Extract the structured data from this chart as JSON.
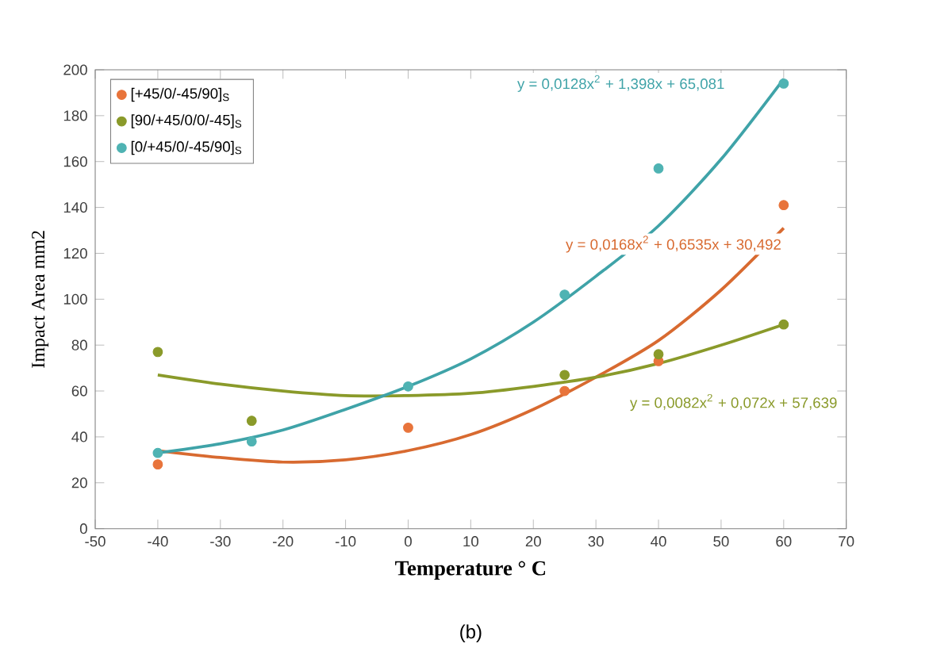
{
  "chart_data": {
    "type": "scatter",
    "xlabel": "Temperature ° C",
    "ylabel": "Impact Area mm2",
    "xlim": [
      -50,
      70
    ],
    "xticks": [
      -50,
      -40,
      -30,
      -20,
      -10,
      0,
      10,
      20,
      30,
      40,
      50,
      60,
      70
    ],
    "ylim": [
      0,
      200
    ],
    "yticks": [
      0,
      20,
      40,
      60,
      80,
      100,
      120,
      140,
      160,
      180,
      200
    ],
    "legend": "top left",
    "grid": false,
    "series": [
      {
        "name": "[+45/0/-45/90]$_{S}$",
        "color": "#e8743b",
        "marker": "circle",
        "x": [
          -40,
          -25,
          0,
          25,
          40,
          60
        ],
        "values": [
          28,
          null,
          44,
          60,
          73,
          141
        ]
      },
      {
        "name": "[90/+45/0/0/-45]$_{S}$",
        "color": "#8a9a2a",
        "marker": "circle",
        "x": [
          -40,
          -25,
          0,
          25,
          40,
          60
        ],
        "values": [
          77,
          47,
          null,
          67,
          76,
          89
        ]
      },
      {
        "name": "[0/+45/0/-45/90]$_{S}$",
        "color": "#4fb3b3",
        "marker": "circle",
        "x": [
          -40,
          -25,
          0,
          25,
          40,
          60
        ],
        "values": [
          33,
          38,
          62,
          102,
          157,
          194
        ]
      },
      {
        "type": "line",
        "marker": "none",
        "color": "#d86a30",
        "x": [
          -40,
          -30,
          -20,
          -10,
          0,
          10,
          20,
          30,
          40,
          50,
          60
        ],
        "values": [
          34,
          31,
          29,
          30,
          34,
          41,
          52,
          66,
          82,
          104,
          131
        ]
      },
      {
        "type": "line",
        "marker": "none",
        "color": "#8a9a2a",
        "x": [
          -40,
          -30,
          -20,
          -10,
          0,
          10,
          20,
          30,
          40,
          50,
          60
        ],
        "values": [
          67,
          63,
          60,
          58,
          58,
          59,
          62,
          66,
          72,
          80,
          89
        ]
      },
      {
        "type": "line",
        "marker": "none",
        "color": "#3fa3a8",
        "x": [
          -40,
          -30,
          -20,
          -10,
          0,
          10,
          20,
          30,
          40,
          50,
          60
        ],
        "values": [
          33,
          37,
          43,
          52,
          62,
          74,
          90,
          110,
          132,
          161,
          196
        ]
      }
    ],
    "annotations": [
      "y = 0,0128x$^{2}$ + 1,398x + 65,081",
      "y = 0,0168x$^{2}$ + 0,6535x + 30,492",
      "y = 0,0082x$^{2}$ + 0,072x + 57,639",
      "(b)"
    ]
  }
}
